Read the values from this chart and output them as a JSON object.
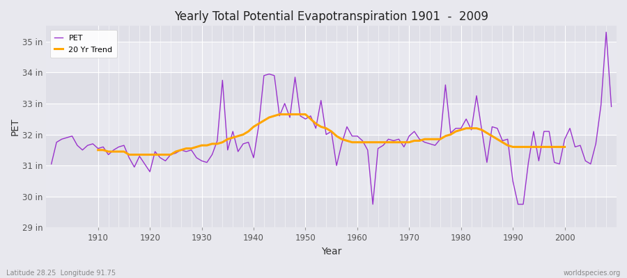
{
  "title": "Yearly Total Potential Evapotranspiration 1901  -  2009",
  "xlabel": "Year",
  "ylabel": "PET",
  "footer_left": "Latitude 28.25  Longitude 91.75",
  "footer_right": "worldspecies.org",
  "pet_color": "#9932CC",
  "trend_color": "#FFA500",
  "background_color": "#f0f0f5",
  "plot_bg_color": "#e8e8ee",
  "ylim": [
    29,
    35.5
  ],
  "yticks": [
    29,
    30,
    31,
    32,
    33,
    34,
    35
  ],
  "ytick_labels": [
    "29 in",
    "30 in",
    "31 in",
    "32 in",
    "33 in",
    "34 in",
    "35 in"
  ],
  "xlim": [
    1900,
    2010
  ],
  "xticks": [
    1910,
    1920,
    1930,
    1940,
    1950,
    1960,
    1970,
    1980,
    1990,
    2000
  ],
  "years": [
    1901,
    1902,
    1903,
    1904,
    1905,
    1906,
    1907,
    1908,
    1909,
    1910,
    1911,
    1912,
    1913,
    1914,
    1915,
    1916,
    1917,
    1918,
    1919,
    1920,
    1921,
    1922,
    1923,
    1924,
    1925,
    1926,
    1927,
    1928,
    1929,
    1930,
    1931,
    1932,
    1933,
    1934,
    1935,
    1936,
    1937,
    1938,
    1939,
    1940,
    1941,
    1942,
    1943,
    1944,
    1945,
    1946,
    1947,
    1948,
    1949,
    1950,
    1951,
    1952,
    1953,
    1954,
    1955,
    1956,
    1957,
    1958,
    1959,
    1960,
    1961,
    1962,
    1963,
    1964,
    1965,
    1966,
    1967,
    1968,
    1969,
    1970,
    1971,
    1972,
    1973,
    1974,
    1975,
    1976,
    1977,
    1978,
    1979,
    1980,
    1981,
    1982,
    1983,
    1984,
    1985,
    1986,
    1987,
    1988,
    1989,
    1990,
    1991,
    1992,
    1993,
    1994,
    1995,
    1996,
    1997,
    1998,
    1999,
    2000,
    2001,
    2002,
    2003,
    2004,
    2005,
    2006,
    2007,
    2008,
    2009
  ],
  "pet_values": [
    31.05,
    31.75,
    31.85,
    31.9,
    31.95,
    31.65,
    31.5,
    31.65,
    31.7,
    31.55,
    31.6,
    31.35,
    31.5,
    31.6,
    31.65,
    31.25,
    30.95,
    31.3,
    31.05,
    30.8,
    31.45,
    31.25,
    31.15,
    31.35,
    31.4,
    31.5,
    31.45,
    31.5,
    31.25,
    31.15,
    31.1,
    31.35,
    31.8,
    33.75,
    31.5,
    32.1,
    31.45,
    31.7,
    31.75,
    31.25,
    32.3,
    33.9,
    33.95,
    33.9,
    32.6,
    33.0,
    32.55,
    33.85,
    32.6,
    32.5,
    32.6,
    32.2,
    33.1,
    32.0,
    32.1,
    31.0,
    31.7,
    32.25,
    31.95,
    31.95,
    31.8,
    31.5,
    29.75,
    31.55,
    31.65,
    31.85,
    31.8,
    31.85,
    31.6,
    31.95,
    32.1,
    31.85,
    31.75,
    31.7,
    31.65,
    31.85,
    33.6,
    32.05,
    32.2,
    32.2,
    32.5,
    32.15,
    33.25,
    32.15,
    31.1,
    32.25,
    32.2,
    31.8,
    31.85,
    30.5,
    29.75,
    29.75,
    31.1,
    32.1,
    31.15,
    32.1,
    32.1,
    31.1,
    31.05,
    31.85,
    32.2,
    31.6,
    31.65,
    31.15,
    31.05,
    31.7,
    32.95,
    35.3,
    32.9
  ],
  "trend_values_x": [
    1910,
    1911,
    1912,
    1913,
    1914,
    1915,
    1916,
    1917,
    1918,
    1919,
    1920,
    1921,
    1922,
    1923,
    1924,
    1925,
    1926,
    1927,
    1928,
    1929,
    1930,
    1931,
    1932,
    1933,
    1934,
    1935,
    1936,
    1937,
    1938,
    1939,
    1940,
    1941,
    1942,
    1943,
    1944,
    1945,
    1946,
    1947,
    1948,
    1949,
    1950,
    1951,
    1952,
    1953,
    1954,
    1955,
    1956,
    1957,
    1958,
    1959,
    1960,
    1961,
    1962,
    1963,
    1964,
    1965,
    1966,
    1967,
    1968,
    1969,
    1970,
    1971,
    1972,
    1973,
    1974,
    1975,
    1976,
    1977,
    1978,
    1979,
    1980,
    1981,
    1982,
    1983,
    1984,
    1985,
    1986,
    1987,
    1988,
    1989,
    1990,
    1991,
    1992,
    1993,
    1994,
    1995,
    1996,
    1997,
    1998,
    1999,
    2000
  ],
  "trend_values_y": [
    31.5,
    31.5,
    31.45,
    31.45,
    31.45,
    31.45,
    31.35,
    31.35,
    31.35,
    31.35,
    31.35,
    31.35,
    31.35,
    31.35,
    31.35,
    31.45,
    31.5,
    31.55,
    31.55,
    31.6,
    31.65,
    31.65,
    31.7,
    31.7,
    31.75,
    31.85,
    31.9,
    31.95,
    32.0,
    32.1,
    32.25,
    32.35,
    32.45,
    32.55,
    32.6,
    32.65,
    32.65,
    32.65,
    32.65,
    32.65,
    32.65,
    32.5,
    32.35,
    32.25,
    32.2,
    32.1,
    31.95,
    31.85,
    31.8,
    31.75,
    31.75,
    31.75,
    31.75,
    31.75,
    31.75,
    31.75,
    31.75,
    31.75,
    31.75,
    31.75,
    31.75,
    31.8,
    31.8,
    31.85,
    31.85,
    31.85,
    31.85,
    31.95,
    32.0,
    32.1,
    32.15,
    32.2,
    32.2,
    32.2,
    32.15,
    32.05,
    31.95,
    31.85,
    31.75,
    31.65,
    31.6,
    31.6,
    31.6,
    31.6,
    31.6,
    31.6,
    31.6,
    31.6,
    31.6,
    31.6,
    31.6
  ]
}
